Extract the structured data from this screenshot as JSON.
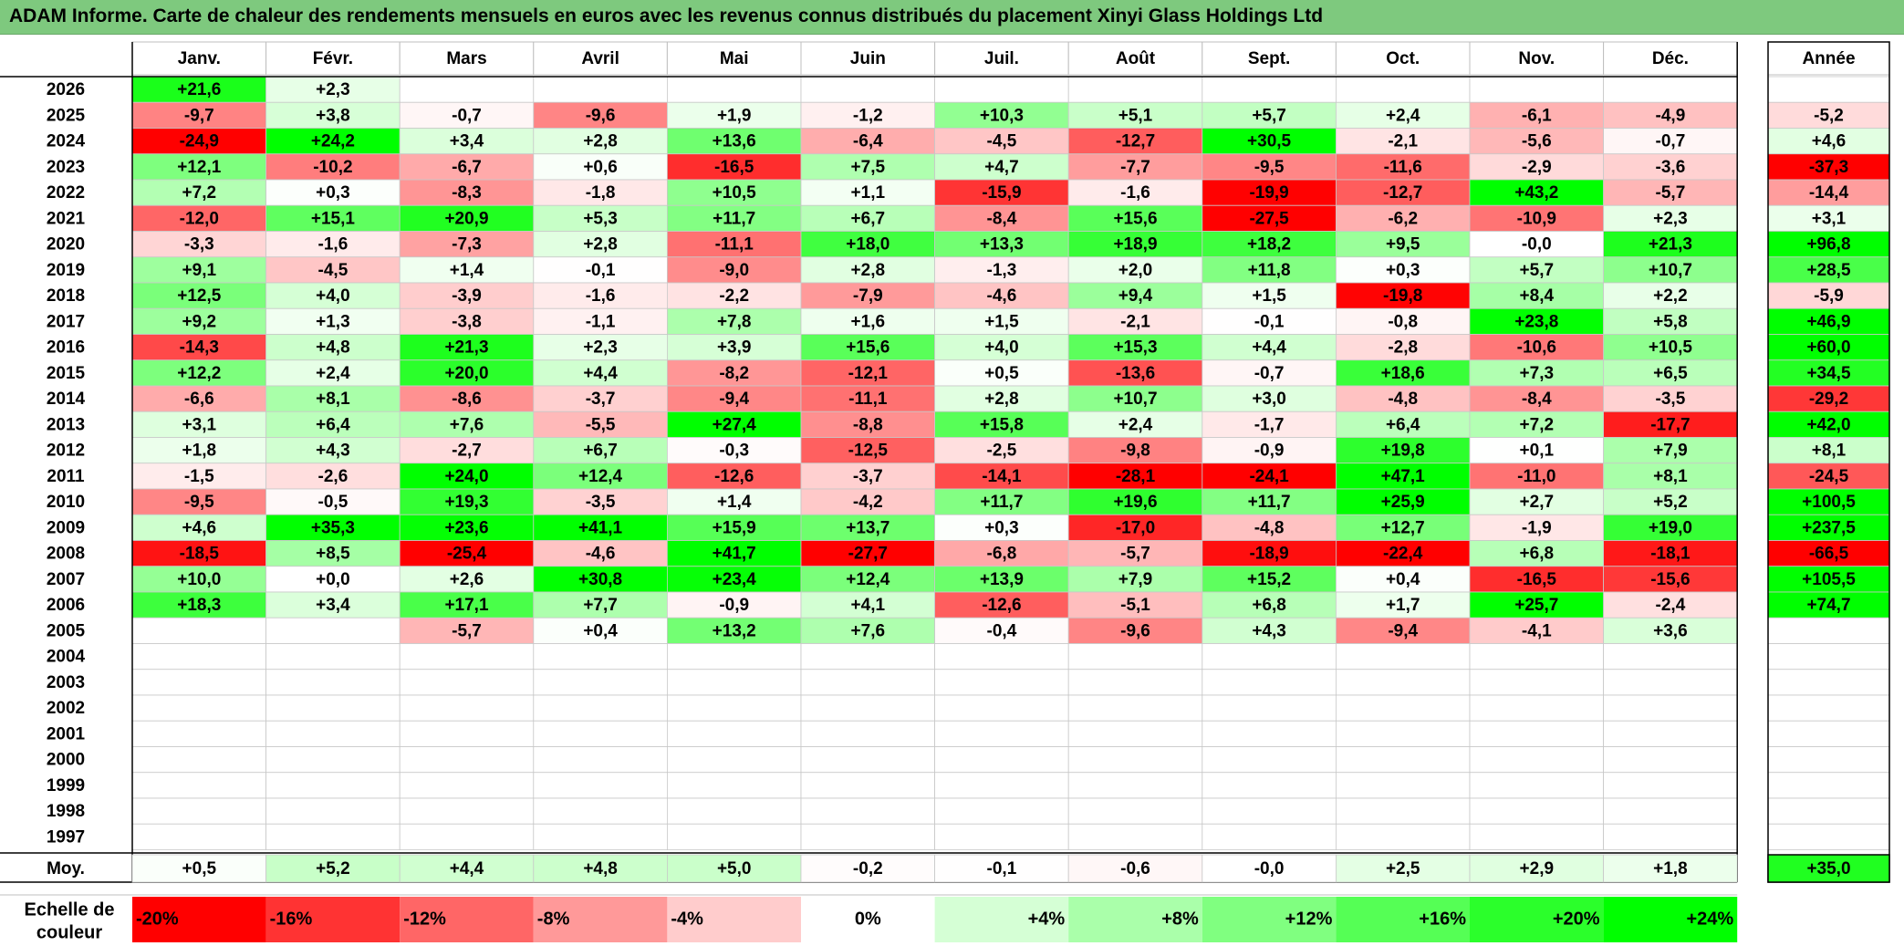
{
  "title": "ADAM Informe. Carte de chaleur des rendements mensuels en euros avec les revenus connus distribués du placement Xinyi Glass Holdings Ltd",
  "chart_data": {
    "type": "heatmap",
    "months": [
      "Janv.",
      "Févr.",
      "Mars",
      "Avril",
      "Mai",
      "Juin",
      "Juil.",
      "Août",
      "Sept.",
      "Oct.",
      "Nov.",
      "Déc."
    ],
    "year_label": "Année",
    "avg_label": "Moy.",
    "rows": [
      {
        "year": "2026",
        "values": [
          "+21,6",
          "+2,3",
          "",
          "",
          "",
          "",
          "",
          "",
          "",
          "",
          "",
          ""
        ],
        "annual": ""
      },
      {
        "year": "2025",
        "values": [
          "-9,7",
          "+3,8",
          "-0,7",
          "-9,6",
          "+1,9",
          "-1,2",
          "+10,3",
          "+5,1",
          "+5,7",
          "+2,4",
          "-6,1",
          "-4,9"
        ],
        "annual": "-5,2"
      },
      {
        "year": "2024",
        "values": [
          "-24,9",
          "+24,2",
          "+3,4",
          "+2,8",
          "+13,6",
          "-6,4",
          "-4,5",
          "-12,7",
          "+30,5",
          "-2,1",
          "-5,6",
          "-0,7"
        ],
        "annual": "+4,6"
      },
      {
        "year": "2023",
        "values": [
          "+12,1",
          "-10,2",
          "-6,7",
          "+0,6",
          "-16,5",
          "+7,5",
          "+4,7",
          "-7,7",
          "-9,5",
          "-11,6",
          "-2,9",
          "-3,6"
        ],
        "annual": "-37,3"
      },
      {
        "year": "2022",
        "values": [
          "+7,2",
          "+0,3",
          "-8,3",
          "-1,8",
          "+10,5",
          "+1,1",
          "-15,9",
          "-1,6",
          "-19,9",
          "-12,7",
          "+43,2",
          "-5,7"
        ],
        "annual": "-14,4"
      },
      {
        "year": "2021",
        "values": [
          "-12,0",
          "+15,1",
          "+20,9",
          "+5,3",
          "+11,7",
          "+6,7",
          "-8,4",
          "+15,6",
          "-27,5",
          "-6,2",
          "-10,9",
          "+2,3"
        ],
        "annual": "+3,1"
      },
      {
        "year": "2020",
        "values": [
          "-3,3",
          "-1,6",
          "-7,3",
          "+2,8",
          "-11,1",
          "+18,0",
          "+13,3",
          "+18,9",
          "+18,2",
          "+9,5",
          "-0,0",
          "+21,3"
        ],
        "annual": "+96,8"
      },
      {
        "year": "2019",
        "values": [
          "+9,1",
          "-4,5",
          "+1,4",
          "-0,1",
          "-9,0",
          "+2,8",
          "-1,3",
          "+2,0",
          "+11,8",
          "+0,3",
          "+5,7",
          "+10,7"
        ],
        "annual": "+28,5"
      },
      {
        "year": "2018",
        "values": [
          "+12,5",
          "+4,0",
          "-3,9",
          "-1,6",
          "-2,2",
          "-7,9",
          "-4,6",
          "+9,4",
          "+1,5",
          "-19,8",
          "+8,4",
          "+2,2"
        ],
        "annual": "-5,9"
      },
      {
        "year": "2017",
        "values": [
          "+9,2",
          "+1,3",
          "-3,8",
          "-1,1",
          "+7,8",
          "+1,6",
          "+1,5",
          "-2,1",
          "-0,1",
          "-0,8",
          "+23,8",
          "+5,8"
        ],
        "annual": "+46,9"
      },
      {
        "year": "2016",
        "values": [
          "-14,3",
          "+4,8",
          "+21,3",
          "+2,3",
          "+3,9",
          "+15,6",
          "+4,0",
          "+15,3",
          "+4,4",
          "-2,8",
          "-10,6",
          "+10,5"
        ],
        "annual": "+60,0"
      },
      {
        "year": "2015",
        "values": [
          "+12,2",
          "+2,4",
          "+20,0",
          "+4,4",
          "-8,2",
          "-12,1",
          "+0,5",
          "-13,6",
          "-0,7",
          "+18,6",
          "+7,3",
          "+6,5"
        ],
        "annual": "+34,5"
      },
      {
        "year": "2014",
        "values": [
          "-6,6",
          "+8,1",
          "-8,6",
          "-3,7",
          "-9,4",
          "-11,1",
          "+2,8",
          "+10,7",
          "+3,0",
          "-4,8",
          "-8,4",
          "-3,5"
        ],
        "annual": "-29,2"
      },
      {
        "year": "2013",
        "values": [
          "+3,1",
          "+6,4",
          "+7,6",
          "-5,5",
          "+27,4",
          "-8,8",
          "+15,8",
          "+2,4",
          "-1,7",
          "+6,4",
          "+7,2",
          "-17,7"
        ],
        "annual": "+42,0"
      },
      {
        "year": "2012",
        "values": [
          "+1,8",
          "+4,3",
          "-2,7",
          "+6,7",
          "-0,3",
          "-12,5",
          "-2,5",
          "-9,8",
          "-0,9",
          "+19,8",
          "+0,1",
          "+7,9"
        ],
        "annual": "+8,1"
      },
      {
        "year": "2011",
        "values": [
          "-1,5",
          "-2,6",
          "+24,0",
          "+12,4",
          "-12,6",
          "-3,7",
          "-14,1",
          "-28,1",
          "-24,1",
          "+47,1",
          "-11,0",
          "+8,1"
        ],
        "annual": "-24,5"
      },
      {
        "year": "2010",
        "values": [
          "-9,5",
          "-0,5",
          "+19,3",
          "-3,5",
          "+1,4",
          "-4,2",
          "+11,7",
          "+19,6",
          "+11,7",
          "+25,9",
          "+2,7",
          "+5,2"
        ],
        "annual": "+100,5"
      },
      {
        "year": "2009",
        "values": [
          "+4,6",
          "+35,3",
          "+23,6",
          "+41,1",
          "+15,9",
          "+13,7",
          "+0,3",
          "-17,0",
          "-4,8",
          "+12,7",
          "-1,9",
          "+19,0"
        ],
        "annual": "+237,5"
      },
      {
        "year": "2008",
        "values": [
          "-18,5",
          "+8,5",
          "-25,4",
          "-4,6",
          "+41,7",
          "-27,7",
          "-6,8",
          "-5,7",
          "-18,9",
          "-22,4",
          "+6,8",
          "-18,1"
        ],
        "annual": "-66,5"
      },
      {
        "year": "2007",
        "values": [
          "+10,0",
          "+0,0",
          "+2,6",
          "+30,8",
          "+23,4",
          "+12,4",
          "+13,9",
          "+7,9",
          "+15,2",
          "+0,4",
          "-16,5",
          "-15,6"
        ],
        "annual": "+105,5"
      },
      {
        "year": "2006",
        "values": [
          "+18,3",
          "+3,4",
          "+17,1",
          "+7,7",
          "-0,9",
          "+4,1",
          "-12,6",
          "-5,1",
          "+6,8",
          "+1,7",
          "+25,7",
          "-2,4"
        ],
        "annual": "+74,7"
      },
      {
        "year": "2005",
        "values": [
          "",
          "",
          "-5,7",
          "+0,4",
          "+13,2",
          "+7,6",
          "-0,4",
          "-9,6",
          "+4,3",
          "-9,4",
          "-4,1",
          "+3,6"
        ],
        "annual": ""
      },
      {
        "year": "2004",
        "values": [
          "",
          "",
          "",
          "",
          "",
          "",
          "",
          "",
          "",
          "",
          "",
          ""
        ],
        "annual": ""
      },
      {
        "year": "2003",
        "values": [
          "",
          "",
          "",
          "",
          "",
          "",
          "",
          "",
          "",
          "",
          "",
          ""
        ],
        "annual": ""
      },
      {
        "year": "2002",
        "values": [
          "",
          "",
          "",
          "",
          "",
          "",
          "",
          "",
          "",
          "",
          "",
          ""
        ],
        "annual": ""
      },
      {
        "year": "2001",
        "values": [
          "",
          "",
          "",
          "",
          "",
          "",
          "",
          "",
          "",
          "",
          "",
          ""
        ],
        "annual": ""
      },
      {
        "year": "2000",
        "values": [
          "",
          "",
          "",
          "",
          "",
          "",
          "",
          "",
          "",
          "",
          "",
          ""
        ],
        "annual": ""
      },
      {
        "year": "1999",
        "values": [
          "",
          "",
          "",
          "",
          "",
          "",
          "",
          "",
          "",
          "",
          "",
          ""
        ],
        "annual": ""
      },
      {
        "year": "1998",
        "values": [
          "",
          "",
          "",
          "",
          "",
          "",
          "",
          "",
          "",
          "",
          "",
          ""
        ],
        "annual": ""
      },
      {
        "year": "1997",
        "values": [
          "",
          "",
          "",
          "",
          "",
          "",
          "",
          "",
          "",
          "",
          "",
          ""
        ],
        "annual": ""
      }
    ],
    "averages": [
      "+0,5",
      "+5,2",
      "+4,4",
      "+4,8",
      "+5,0",
      "-0,2",
      "-0,1",
      "-0,6",
      "-0,0",
      "+2,5",
      "+2,9",
      "+1,8"
    ],
    "avg_annual": "+35,0",
    "scale_title_line1": "Echelle de",
    "scale_title_line2": "couleur",
    "scale": [
      "-20%",
      "-16%",
      "-12%",
      "-8%",
      "-4%",
      "0%",
      "+4%",
      "+8%",
      "+12%",
      "+16%",
      "+20%",
      "+24%"
    ],
    "scale_values": [
      -20,
      -16,
      -12,
      -8,
      -4,
      0,
      4,
      8,
      12,
      16,
      20,
      24
    ],
    "colors": {
      "negative": "#ff0000",
      "positive": "#00ff00",
      "neutral": "#ffffff",
      "title_bg": "#7ec97e"
    }
  }
}
